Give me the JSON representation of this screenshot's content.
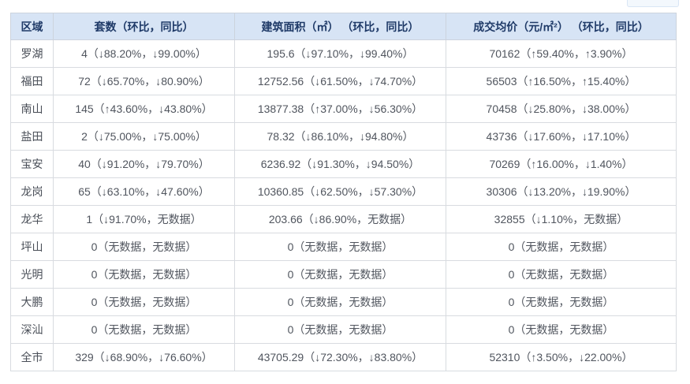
{
  "colors": {
    "header_bg": "#d7e4f5",
    "header_text": "#1f3a68",
    "body_text": "#50555e",
    "grid_border": "#d8dbe0",
    "fragment_fill": "#f3f8fd"
  },
  "table": {
    "columns": [
      {
        "key": "region",
        "label": "区域"
      },
      {
        "key": "units",
        "label": "套数（环比，同比）"
      },
      {
        "key": "area",
        "label": "建筑面积（㎡） （环比，同比）"
      },
      {
        "key": "price",
        "label": "成交均价（元/㎡²） （环比，同比）"
      }
    ],
    "rows": [
      {
        "region": "罗湖",
        "units": "4（↓88.20%，↓99.00%）",
        "area": "195.6（↓97.10%，↓99.40%）",
        "price": "70162（↑59.40%，↑3.90%）"
      },
      {
        "region": "福田",
        "units": "72（↓65.70%，↓80.90%）",
        "area": "12752.56（↓61.50%，↓74.70%）",
        "price": "56503（↑16.50%，↑15.40%）"
      },
      {
        "region": "南山",
        "units": "145（↑43.60%，↓43.80%）",
        "area": "13877.38（↑37.00%，↓56.30%）",
        "price": "70458（↓25.80%，↓38.00%）"
      },
      {
        "region": "盐田",
        "units": "2（↓75.00%，↓75.00%）",
        "area": "78.32（↓86.10%，↓94.80%）",
        "price": "43736（↓17.60%，↓17.10%）"
      },
      {
        "region": "宝安",
        "units": "40（↓91.20%，↓79.70%）",
        "area": "6236.92（↓91.30%，↓94.50%）",
        "price": "70269（↑16.00%，↓1.40%）"
      },
      {
        "region": "龙岗",
        "units": "65（↓63.10%，↓47.60%）",
        "area": "10360.85（↓62.50%，↓57.30%）",
        "price": "30306（↓13.20%，↓19.90%）"
      },
      {
        "region": "龙华",
        "units": "1（↓91.70%，无数据）",
        "area": "203.66（↓86.90%，无数据）",
        "price": "32855（↓1.10%，无数据）"
      },
      {
        "region": "坪山",
        "units": "0（无数据，无数据）",
        "area": "0（无数据，无数据）",
        "price": "0（无数据，无数据）"
      },
      {
        "region": "光明",
        "units": "0（无数据，无数据）",
        "area": "0（无数据，无数据）",
        "price": "0（无数据，无数据）"
      },
      {
        "region": "大鹏",
        "units": "0（无数据，无数据）",
        "area": "0（无数据，无数据）",
        "price": "0（无数据，无数据）"
      },
      {
        "region": "深汕",
        "units": "0（无数据，无数据）",
        "area": "0（无数据，无数据）",
        "price": "0（无数据，无数据）"
      },
      {
        "region": "全市",
        "units": "329（↓68.90%，↓76.60%）",
        "area": "43705.29（↓72.30%，↓83.80%）",
        "price": "52310（↑3.50%，↓22.00%）"
      }
    ]
  }
}
